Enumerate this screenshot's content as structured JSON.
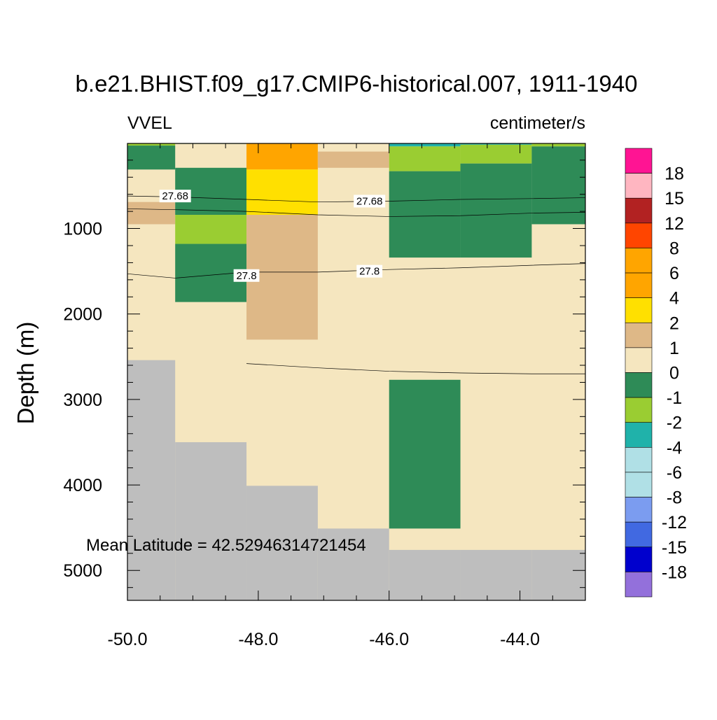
{
  "chart_data": {
    "type": "heatmap",
    "title": "b.e21.BHIST.f09_g17.CMIP6-historical.007, 1911-1940",
    "left_label": "VVEL",
    "right_label": "centimeter/s",
    "ylabel": "Depth (m)",
    "xlabel": "",
    "annotation": "Mean Latitude = 42.52946314721454",
    "xlim": [
      -50.0,
      -43.0
    ],
    "ylim": [
      5.0,
      5350.0
    ],
    "y_reversed": true,
    "x_ticks": [
      -50.0,
      -48.0,
      -46.0,
      -44.0
    ],
    "x_tick_labels": [
      "-50.0",
      "-48.0",
      "-46.0",
      "-44.0"
    ],
    "y_ticks": [
      1000,
      2000,
      3000,
      4000,
      5000
    ],
    "y_tick_labels": [
      "1000",
      "2000",
      "3000",
      "4000",
      "5000"
    ],
    "x_edges": [
      -50.0,
      -49.27,
      -48.18,
      -47.09,
      -46.0,
      -44.91,
      -43.82,
      -43.0
    ],
    "cells": [
      {
        "x0": -50.0,
        "x1": -49.27,
        "d0": 5,
        "d1": 30,
        "bin": "-2:-1"
      },
      {
        "x0": -50.0,
        "x1": -49.27,
        "d0": 30,
        "d1": 310,
        "bin": "-1:0"
      },
      {
        "x0": -50.0,
        "x1": -49.27,
        "d0": 690,
        "d1": 950,
        "bin": "1:2"
      },
      {
        "x0": -49.27,
        "x1": -48.18,
        "d0": 5,
        "d1": 10,
        "bin": "-1:0"
      },
      {
        "x0": -49.27,
        "x1": -48.18,
        "d0": 290,
        "d1": 840,
        "bin": "-1:0"
      },
      {
        "x0": -49.27,
        "x1": -48.18,
        "d0": 840,
        "d1": 1180,
        "bin": "-2:-1"
      },
      {
        "x0": -49.27,
        "x1": -48.18,
        "d0": 1180,
        "d1": 1860,
        "bin": "-1:0"
      },
      {
        "x0": -48.18,
        "x1": -47.09,
        "d0": 5,
        "d1": 310,
        "bin": "4:6"
      },
      {
        "x0": -48.18,
        "x1": -47.09,
        "d0": 310,
        "d1": 840,
        "bin": "2:4"
      },
      {
        "x0": -48.18,
        "x1": -47.09,
        "d0": 840,
        "d1": 2300,
        "bin": "1:2"
      },
      {
        "x0": -47.09,
        "x1": -46.0,
        "d0": 100,
        "d1": 290,
        "bin": "1:2"
      },
      {
        "x0": -46.0,
        "x1": -44.91,
        "d0": 5,
        "d1": 40,
        "bin": "-4:-2"
      },
      {
        "x0": -46.0,
        "x1": -44.91,
        "d0": 40,
        "d1": 330,
        "bin": "-2:-1"
      },
      {
        "x0": -46.0,
        "x1": -44.91,
        "d0": 330,
        "d1": 1340,
        "bin": "-1:0"
      },
      {
        "x0": -46.0,
        "x1": -44.91,
        "d0": 2770,
        "d1": 4510,
        "bin": "-1:0"
      },
      {
        "x0": -44.91,
        "x1": -43.82,
        "d0": 5,
        "d1": 20,
        "bin": "-4:-2"
      },
      {
        "x0": -44.91,
        "x1": -43.82,
        "d0": 20,
        "d1": 240,
        "bin": "-2:-1"
      },
      {
        "x0": -44.91,
        "x1": -43.82,
        "d0": 240,
        "d1": 1340,
        "bin": "-1:0"
      },
      {
        "x0": -43.82,
        "x1": -43.0,
        "d0": 5,
        "d1": 40,
        "bin": "-2:-1"
      },
      {
        "x0": -43.82,
        "x1": -43.0,
        "d0": 40,
        "d1": 950,
        "bin": "-1:0"
      }
    ],
    "land": [
      {
        "x0": -50.0,
        "x1": -49.27,
        "bottom_depth": 2540
      },
      {
        "x0": -49.27,
        "x1": -48.18,
        "bottom_depth": 3500
      },
      {
        "x0": -48.18,
        "x1": -47.09,
        "bottom_depth": 4010
      },
      {
        "x0": -47.09,
        "x1": -46.0,
        "bottom_depth": 4510
      },
      {
        "x0": -46.0,
        "x1": -44.91,
        "bottom_depth": 4760
      },
      {
        "x0": -44.91,
        "x1": -43.82,
        "bottom_depth": 4760
      },
      {
        "x0": -43.82,
        "x1": -43.0,
        "bottom_depth": 4760
      }
    ],
    "contours": [
      {
        "label": "27.68",
        "points": [
          [
            -50.0,
            620
          ],
          [
            -49.27,
            630
          ],
          [
            -48.18,
            660
          ],
          [
            -47.09,
            690
          ],
          [
            -46.0,
            680
          ],
          [
            -44.91,
            660
          ],
          [
            -43.82,
            650
          ],
          [
            -43.0,
            640
          ]
        ],
        "label_at": [
          [
            -49.27,
            620
          ],
          [
            -46.3,
            680
          ]
        ]
      },
      {
        "label": "",
        "points": [
          [
            -50.0,
            770
          ],
          [
            -49.27,
            780
          ],
          [
            -48.18,
            800
          ],
          [
            -47.09,
            840
          ],
          [
            -46.0,
            860
          ],
          [
            -44.91,
            850
          ],
          [
            -43.82,
            820
          ],
          [
            -43.0,
            810
          ]
        ],
        "label_at": []
      },
      {
        "label": "27.8",
        "points": [
          [
            -50.0,
            1530
          ],
          [
            -49.27,
            1580
          ],
          [
            -48.18,
            1510
          ],
          [
            -47.09,
            1510
          ],
          [
            -46.0,
            1480
          ],
          [
            -44.91,
            1460
          ],
          [
            -43.82,
            1430
          ],
          [
            -43.0,
            1410
          ]
        ],
        "label_at": [
          [
            -48.18,
            1550
          ],
          [
            -46.3,
            1500
          ]
        ]
      },
      {
        "label": "",
        "points": [
          [
            -48.18,
            2580
          ],
          [
            -47.09,
            2630
          ],
          [
            -46.0,
            2670
          ],
          [
            -44.91,
            2690
          ],
          [
            -43.82,
            2700
          ],
          [
            -43.0,
            2700
          ]
        ],
        "label_at": []
      }
    ],
    "colorbar": {
      "labels": [
        "18",
        "15",
        "12",
        "8",
        "6",
        "4",
        "2",
        "1",
        "0",
        "-1",
        "-2",
        "-4",
        "-6",
        "-8",
        "-12",
        "-15",
        "-18"
      ],
      "colors": [
        "#ff1493",
        "#ffb6c1",
        "#b22222",
        "#ff4500",
        "#ffa500",
        "#ffa500",
        "#ffe000",
        "#deb887",
        "#f5e6bf",
        "#2e8b57",
        "#9acd32",
        "#20b2aa",
        "#b0e0e6",
        "#b0e0e6",
        "#7b9cf0",
        "#4169e1",
        "#0000cd",
        "#9370db"
      ]
    },
    "bin_colors": {
      "4:6": "#ffa500",
      "2:4": "#ffe000",
      "1:2": "#deb887",
      "0:1": "#f5e6bf",
      "-1:0": "#2e8b57",
      "-2:-1": "#9acd32",
      "-4:-2": "#20b2aa"
    },
    "background_bin": "0:1",
    "land_color": "#bebebe"
  }
}
